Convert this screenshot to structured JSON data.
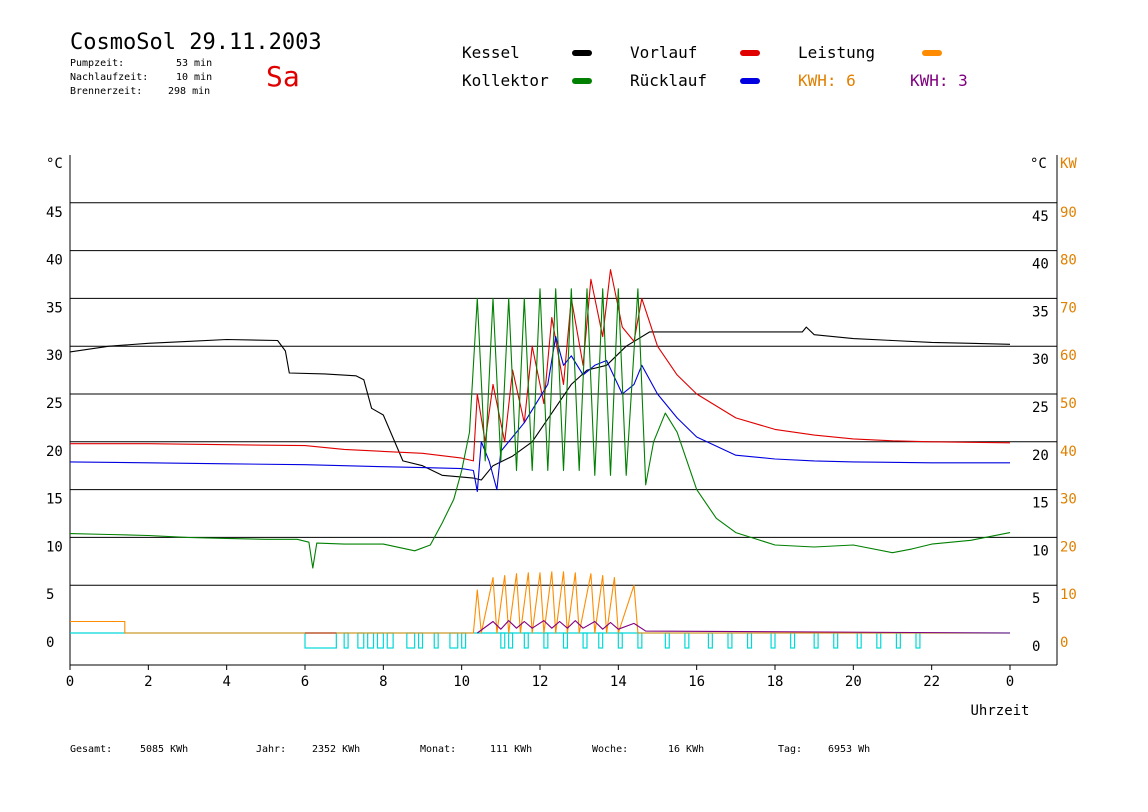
{
  "header": {
    "title": "CosmoSol 29.11.2003",
    "day": "Sa",
    "stats": [
      {
        "label": "Pumpzeit:",
        "value": "53 min"
      },
      {
        "label": "Nachlaufzeit:",
        "value": "10 min"
      },
      {
        "label": "Brennerzeit:",
        "value": "298 min"
      }
    ]
  },
  "legend": {
    "items": [
      {
        "label": "Kessel",
        "color": "#000000"
      },
      {
        "label": "Vorlauf",
        "color": "#e00000"
      },
      {
        "label": "Leistung",
        "color": "#ff8c00"
      },
      {
        "label": "Kollektor",
        "color": "#008000"
      },
      {
        "label": "Rücklauf",
        "color": "#0000e0"
      }
    ],
    "kwh_orange": "KWH: 6",
    "kwh_purple": "KWH: 3",
    "kwh_orange_color": "#e08000",
    "kwh_purple_color": "#800080"
  },
  "footer": [
    {
      "label": "Gesamt:",
      "value": "5085 KWh"
    },
    {
      "label": "Jahr:",
      "value": "2352 KWh"
    },
    {
      "label": "Monat:",
      "value": "111 KWh"
    },
    {
      "label": "Woche:",
      "value": "16 KWh"
    },
    {
      "label": "Tag:",
      "value": "6953 Wh"
    }
  ],
  "chart_data": {
    "type": "line",
    "xlabel": "Uhrzeit",
    "ylabel_left": "°C",
    "ylabel_right": "°C",
    "ylabel_right2": "KW",
    "xlim": [
      0,
      24
    ],
    "ylim": [
      0,
      50
    ],
    "xticks": [
      "0",
      "2",
      "4",
      "6",
      "8",
      "10",
      "12",
      "14",
      "16",
      "18",
      "20",
      "22",
      "0"
    ],
    "yticks_left": [
      "0",
      "5",
      "10",
      "15",
      "20",
      "25",
      "30",
      "35",
      "40",
      "45"
    ],
    "yticks_right": [
      "0",
      "5",
      "10",
      "15",
      "20",
      "25",
      "30",
      "35",
      "40",
      "45"
    ],
    "yticks_kw": [
      "0",
      "10",
      "20",
      "30",
      "40",
      "50",
      "60",
      "70",
      "80",
      "90"
    ],
    "grid": true,
    "series": [
      {
        "name": "Kessel",
        "color": "#000000",
        "points": [
          [
            0,
            29.4
          ],
          [
            1,
            30
          ],
          [
            2,
            30.3
          ],
          [
            3,
            30.5
          ],
          [
            4,
            30.7
          ],
          [
            5.3,
            30.6
          ],
          [
            5.5,
            29.5
          ],
          [
            5.6,
            27.2
          ],
          [
            6.5,
            27.1
          ],
          [
            7.3,
            26.9
          ],
          [
            7.5,
            26.5
          ],
          [
            7.7,
            23.5
          ],
          [
            8,
            22.8
          ],
          [
            8.5,
            18
          ],
          [
            9,
            17.5
          ],
          [
            9.5,
            16.5
          ],
          [
            10.3,
            16.2
          ],
          [
            10.5,
            16
          ],
          [
            10.8,
            17.5
          ],
          [
            11.3,
            18.5
          ],
          [
            11.8,
            20
          ],
          [
            12.3,
            23
          ],
          [
            12.8,
            26
          ],
          [
            13.2,
            27.5
          ],
          [
            13.7,
            28
          ],
          [
            14.2,
            30
          ],
          [
            14.8,
            31.5
          ],
          [
            16,
            31.5
          ],
          [
            17.5,
            31.5
          ],
          [
            18.7,
            31.5
          ],
          [
            18.8,
            32
          ],
          [
            19,
            31.2
          ],
          [
            20,
            30.8
          ],
          [
            21,
            30.6
          ],
          [
            22,
            30.4
          ],
          [
            23,
            30.3
          ],
          [
            24,
            30.2
          ]
        ]
      },
      {
        "name": "Vorlauf",
        "color": "#e00000",
        "points": [
          [
            0,
            19.8
          ],
          [
            2,
            19.8
          ],
          [
            4,
            19.7
          ],
          [
            6,
            19.6
          ],
          [
            7,
            19.2
          ],
          [
            8,
            19
          ],
          [
            9,
            18.8
          ],
          [
            10,
            18.3
          ],
          [
            10.3,
            18
          ],
          [
            10.4,
            25
          ],
          [
            10.6,
            20
          ],
          [
            10.8,
            26
          ],
          [
            11.1,
            20
          ],
          [
            11.3,
            27.5
          ],
          [
            11.6,
            22
          ],
          [
            11.8,
            30
          ],
          [
            12.1,
            24
          ],
          [
            12.3,
            33
          ],
          [
            12.6,
            26
          ],
          [
            12.8,
            35
          ],
          [
            13.1,
            28
          ],
          [
            13.3,
            37
          ],
          [
            13.6,
            31
          ],
          [
            13.8,
            38
          ],
          [
            14.1,
            32
          ],
          [
            14.4,
            30.5
          ],
          [
            14.6,
            35
          ],
          [
            15,
            30
          ],
          [
            15.5,
            27
          ],
          [
            16,
            25
          ],
          [
            17,
            22.5
          ],
          [
            18,
            21.3
          ],
          [
            19,
            20.7
          ],
          [
            20,
            20.3
          ],
          [
            21,
            20.1
          ],
          [
            22,
            20.0
          ],
          [
            24,
            19.9
          ]
        ]
      },
      {
        "name": "Rücklauf",
        "color": "#0000e0",
        "points": [
          [
            0,
            17.9
          ],
          [
            2,
            17.8
          ],
          [
            4,
            17.7
          ],
          [
            6,
            17.6
          ],
          [
            7,
            17.5
          ],
          [
            8,
            17.4
          ],
          [
            9,
            17.3
          ],
          [
            10,
            17.2
          ],
          [
            10.3,
            17
          ],
          [
            10.4,
            14.8
          ],
          [
            10.5,
            20
          ],
          [
            10.7,
            18
          ],
          [
            10.9,
            15
          ],
          [
            11,
            19
          ],
          [
            11.3,
            20.5
          ],
          [
            11.6,
            22
          ],
          [
            11.9,
            24
          ],
          [
            12.2,
            26
          ],
          [
            12.4,
            31
          ],
          [
            12.6,
            28
          ],
          [
            12.8,
            29
          ],
          [
            13.1,
            27
          ],
          [
            13.4,
            28
          ],
          [
            13.7,
            28.5
          ],
          [
            14.1,
            25
          ],
          [
            14.4,
            26
          ],
          [
            14.6,
            28
          ],
          [
            15,
            25
          ],
          [
            15.5,
            22.5
          ],
          [
            16,
            20.5
          ],
          [
            17,
            18.6
          ],
          [
            18,
            18.2
          ],
          [
            19,
            18
          ],
          [
            20,
            17.9
          ],
          [
            22,
            17.8
          ],
          [
            24,
            17.8
          ]
        ]
      },
      {
        "name": "Kollektor",
        "color": "#008000",
        "points": [
          [
            0,
            10.4
          ],
          [
            1,
            10.3
          ],
          [
            2,
            10.2
          ],
          [
            3,
            10.0
          ],
          [
            4,
            9.9
          ],
          [
            5,
            9.8
          ],
          [
            5.8,
            9.8
          ],
          [
            6.1,
            9.5
          ],
          [
            6.2,
            6.8
          ],
          [
            6.3,
            9.4
          ],
          [
            7,
            9.3
          ],
          [
            8,
            9.3
          ],
          [
            8.8,
            8.6
          ],
          [
            9.2,
            9.2
          ],
          [
            9.5,
            11.5
          ],
          [
            9.8,
            14
          ],
          [
            10,
            17
          ],
          [
            10.2,
            21
          ],
          [
            10.4,
            35
          ],
          [
            10.6,
            18
          ],
          [
            10.8,
            35
          ],
          [
            11,
            18
          ],
          [
            11.2,
            35
          ],
          [
            11.4,
            17
          ],
          [
            11.6,
            35
          ],
          [
            11.8,
            17
          ],
          [
            12,
            36
          ],
          [
            12.2,
            17
          ],
          [
            12.4,
            36
          ],
          [
            12.6,
            17
          ],
          [
            12.8,
            36
          ],
          [
            13,
            17
          ],
          [
            13.2,
            36
          ],
          [
            13.4,
            16.5
          ],
          [
            13.6,
            36
          ],
          [
            13.8,
            16.5
          ],
          [
            14,
            36
          ],
          [
            14.2,
            16.5
          ],
          [
            14.5,
            36
          ],
          [
            14.7,
            15.5
          ],
          [
            14.9,
            20
          ],
          [
            15.2,
            23
          ],
          [
            15.5,
            21
          ],
          [
            16,
            15
          ],
          [
            16.5,
            12
          ],
          [
            17,
            10.5
          ],
          [
            18,
            9.2
          ],
          [
            19,
            9
          ],
          [
            20,
            9.2
          ],
          [
            21,
            8.4
          ],
          [
            21.5,
            8.8
          ],
          [
            22,
            9.3
          ],
          [
            23,
            9.7
          ],
          [
            24,
            10.5
          ]
        ]
      },
      {
        "name": "Leistung",
        "color": "#ff8c00",
        "points": [
          [
            0,
            1.2
          ],
          [
            1.4,
            1.2
          ],
          [
            1.4,
            0
          ],
          [
            10.3,
            0
          ],
          [
            10.4,
            4.5
          ],
          [
            10.5,
            0
          ],
          [
            10.8,
            5.8
          ],
          [
            10.9,
            0
          ],
          [
            11.1,
            6
          ],
          [
            11.2,
            0
          ],
          [
            11.4,
            6.2
          ],
          [
            11.5,
            0
          ],
          [
            11.7,
            6.3
          ],
          [
            11.8,
            0
          ],
          [
            12,
            6.3
          ],
          [
            12.1,
            0
          ],
          [
            12.3,
            6.4
          ],
          [
            12.4,
            0
          ],
          [
            12.6,
            6.4
          ],
          [
            12.7,
            0
          ],
          [
            12.9,
            6.3
          ],
          [
            13,
            0
          ],
          [
            13.3,
            6.2
          ],
          [
            13.4,
            0
          ],
          [
            13.6,
            6
          ],
          [
            13.7,
            0
          ],
          [
            13.9,
            5.8
          ],
          [
            14,
            0
          ],
          [
            14.4,
            5
          ],
          [
            14.5,
            0
          ],
          [
            24,
            0
          ]
        ]
      },
      {
        "name": "Leistung2",
        "color": "#800080",
        "points": [
          [
            10.4,
            0
          ],
          [
            10.8,
            1.2
          ],
          [
            11,
            0.4
          ],
          [
            11.2,
            1.3
          ],
          [
            11.4,
            0.5
          ],
          [
            11.6,
            1.2
          ],
          [
            11.8,
            0.5
          ],
          [
            12.1,
            1.3
          ],
          [
            12.3,
            0.5
          ],
          [
            12.5,
            1.2
          ],
          [
            12.7,
            0.5
          ],
          [
            12.9,
            1.3
          ],
          [
            13.1,
            0.5
          ],
          [
            13.4,
            1.2
          ],
          [
            13.6,
            0.4
          ],
          [
            13.8,
            1.1
          ],
          [
            14,
            0.4
          ],
          [
            14.4,
            1
          ],
          [
            14.7,
            0.2
          ],
          [
            24,
            0
          ]
        ]
      }
    ],
    "pump_intervals": [
      [
        6,
        6.8
      ],
      [
        7.0,
        7.1
      ],
      [
        7.35,
        7.5
      ],
      [
        7.6,
        7.75
      ],
      [
        7.85,
        8.0
      ],
      [
        8.1,
        8.25
      ],
      [
        8.6,
        8.8
      ],
      [
        8.9,
        9.0
      ],
      [
        9.3,
        9.4
      ],
      [
        9.7,
        9.9
      ],
      [
        10.0,
        10.1
      ],
      [
        11.0,
        11.1
      ],
      [
        11.2,
        11.3
      ],
      [
        11.6,
        11.7
      ],
      [
        12.1,
        12.2
      ],
      [
        12.6,
        12.7
      ],
      [
        13.1,
        13.2
      ],
      [
        13.5,
        13.6
      ],
      [
        14.0,
        14.1
      ],
      [
        14.5,
        14.6
      ],
      [
        15.2,
        15.3
      ],
      [
        15.7,
        15.8
      ],
      [
        16.3,
        16.4
      ],
      [
        16.8,
        16.9
      ],
      [
        17.3,
        17.4
      ],
      [
        17.9,
        18.0
      ],
      [
        18.4,
        18.5
      ],
      [
        19.0,
        19.1
      ],
      [
        19.5,
        19.6
      ],
      [
        20.1,
        20.2
      ],
      [
        20.6,
        20.7
      ],
      [
        21.1,
        21.2
      ],
      [
        21.6,
        21.7
      ]
    ]
  }
}
